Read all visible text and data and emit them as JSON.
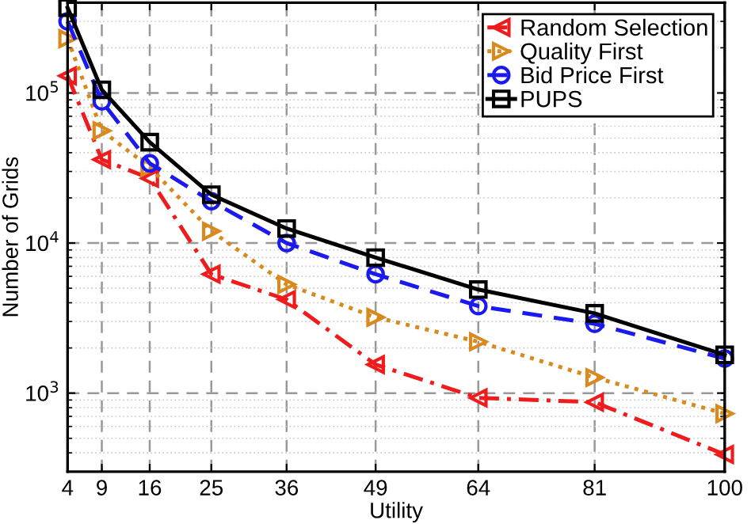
{
  "chart_data": {
    "type": "line",
    "xlabel": "Utility",
    "ylabel": "Number of Grids",
    "x": [
      4,
      9,
      16,
      25,
      36,
      49,
      64,
      81,
      100
    ],
    "series": [
      {
        "name": "Random Selection",
        "color": "#ee1c1c",
        "marker": "triangle-left",
        "line_style": "dashdot",
        "values": [
          130000,
          36000,
          27000,
          6200,
          4200,
          1550,
          930,
          870,
          390
        ]
      },
      {
        "name": "Quality First",
        "color": "#d98a1e",
        "marker": "triangle-right",
        "line_style": "dotted",
        "values": [
          230000,
          56000,
          32000,
          12000,
          5300,
          3200,
          2200,
          1270,
          730
        ]
      },
      {
        "name": "Bid Price First",
        "color": "#1a1aee",
        "marker": "circle",
        "line_style": "dashed",
        "values": [
          300000,
          88000,
          34000,
          19000,
          10000,
          6200,
          3800,
          2900,
          1700
        ]
      },
      {
        "name": "PUPS",
        "color": "#000000",
        "marker": "square",
        "line_style": "solid",
        "values": [
          370000,
          105000,
          47000,
          21000,
          12500,
          8000,
          4900,
          3400,
          1800
        ]
      }
    ],
    "log": "y",
    "xlim": [
      4,
      100
    ],
    "xticks": [
      4,
      9,
      16,
      25,
      36,
      49,
      64,
      81,
      100
    ],
    "ylim": [
      300,
      400000
    ],
    "yticks": [
      {
        "value": 1000,
        "label": "10$^{3}$"
      },
      {
        "value": 10000,
        "label": "10$^{4}$"
      },
      {
        "value": 100000,
        "label": "10$^{5}$"
      }
    ],
    "grid": true,
    "legend": "top right"
  }
}
